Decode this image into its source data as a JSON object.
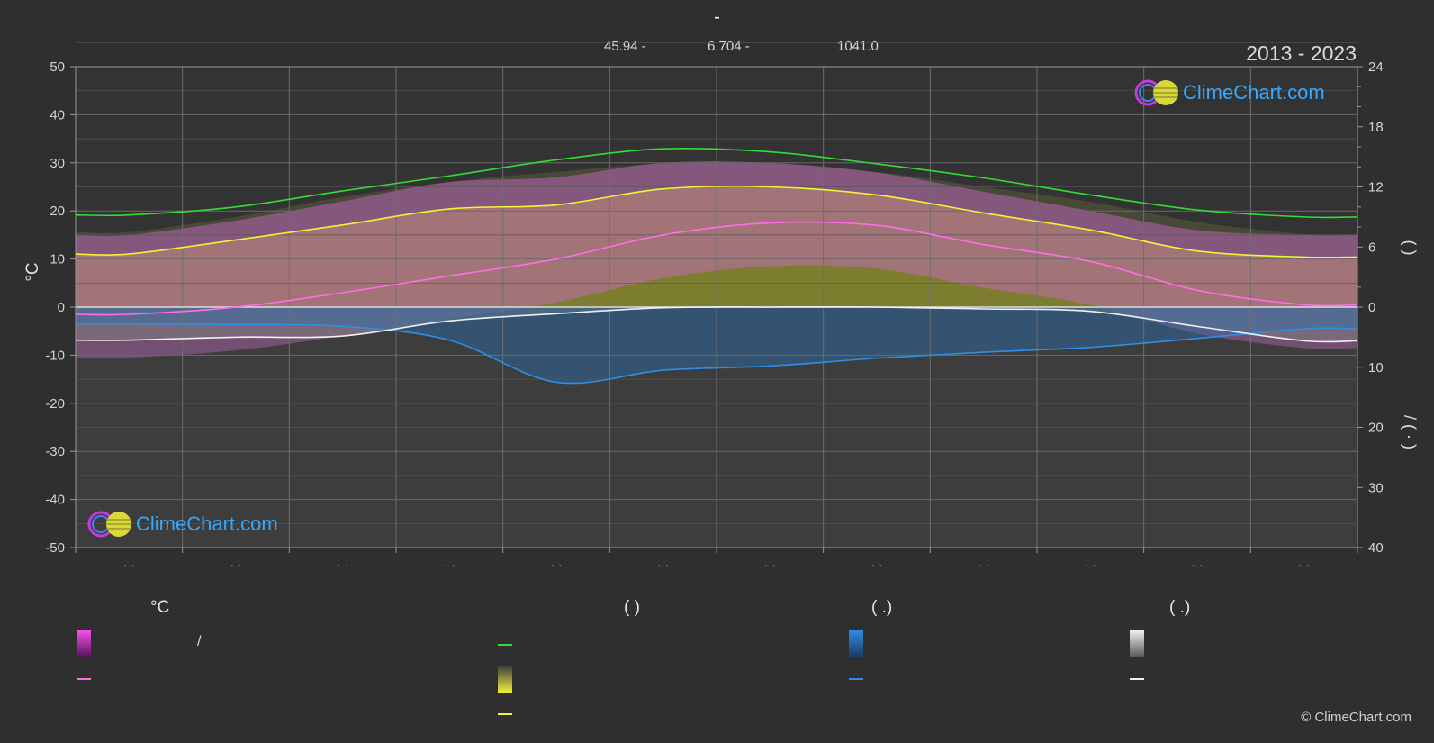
{
  "header": {
    "title": "-",
    "meta": [
      "45.94 -",
      "6.704 -",
      "1041.0"
    ],
    "years": "2013 - 2023"
  },
  "logo": {
    "text": "ClimeChart.com"
  },
  "copyright": "© ClimeChart.com",
  "legend": {
    "col1": {
      "heading": "°C",
      "item1_text": "/"
    },
    "col2": {
      "heading": "(        )"
    },
    "col3": {
      "heading": "(   .)"
    },
    "col4": {
      "heading": "(   .)"
    }
  },
  "colors": {
    "background": "#2f2f2f",
    "daylight": "#35dc35",
    "sunshine": "#f2f23a",
    "temp_mean": "#ff6ee8",
    "rain": "#2f8ee6",
    "snow": "#f0f0f0",
    "logo": "#35a8ff"
  },
  "chart_data": {
    "type": "line",
    "months": 12,
    "x_ticks": [
      "· ·",
      "· ·",
      "· ·",
      "· ·",
      "· ·",
      "· ·",
      "· ·",
      "· ·",
      "· ·",
      "· ·",
      "· ·",
      "· ·"
    ],
    "y_left": {
      "label": "°C",
      "ticks": [
        50,
        40,
        30,
        20,
        10,
        0,
        -10,
        -20,
        -30,
        -40,
        -50
      ],
      "range": [
        -50,
        50
      ]
    },
    "y_right_top": {
      "label": "( )",
      "ticks": [
        24,
        18,
        12,
        6,
        0
      ],
      "range": [
        0,
        24
      ]
    },
    "y_right_bottom": {
      "label": "/ ( · )",
      "ticks": [
        0,
        10,
        20,
        30,
        40
      ],
      "range": [
        0,
        40
      ]
    },
    "series": [
      {
        "key": "daylight",
        "unit": "hours",
        "values": [
          9.2,
          10.0,
          11.6,
          13.1,
          14.7,
          15.8,
          15.5,
          14.3,
          12.9,
          11.2,
          9.7,
          9.0
        ]
      },
      {
        "key": "sunshine",
        "unit": "hours",
        "values": [
          5.3,
          6.7,
          8.2,
          9.8,
          10.2,
          11.8,
          12.0,
          11.2,
          9.4,
          7.7,
          5.6,
          5.0
        ]
      },
      {
        "key": "temp_mean",
        "unit": "°C",
        "values": [
          -1.5,
          0.0,
          3.0,
          6.5,
          10.0,
          15.0,
          17.5,
          17.0,
          13.0,
          9.5,
          3.5,
          0.5
        ]
      },
      {
        "key": "rain",
        "unit": "mm",
        "values": [
          2.8,
          2.9,
          3.2,
          5.5,
          12.5,
          10.5,
          9.8,
          8.5,
          7.5,
          6.7,
          5.2,
          3.6
        ]
      },
      {
        "key": "snow",
        "unit": "mm",
        "values": [
          5.5,
          5.0,
          4.8,
          2.3,
          1.1,
          0.1,
          0.0,
          0.0,
          0.3,
          0.7,
          3.2,
          5.6
        ]
      }
    ],
    "bands": {
      "temp_max_approx": [
        15,
        18,
        22,
        26,
        27,
        30,
        30,
        28,
        24,
        20,
        16,
        15
      ],
      "sunshine_band_top_hours": [
        7.5,
        9.0,
        11.0,
        12.5,
        13.5,
        14.3,
        14.3,
        13.5,
        12.0,
        10.5,
        8.5,
        7.3
      ]
    }
  }
}
